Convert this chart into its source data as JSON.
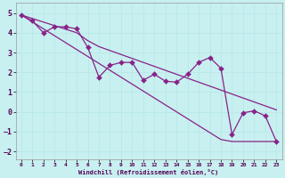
{
  "background_color": "#c8f0f0",
  "grid_color": "#b8e8e8",
  "line_color": "#882288",
  "xlabel": "Windchill (Refroidissement éolien,°C)",
  "xlim": [
    -0.5,
    23.5
  ],
  "ylim": [
    -2.4,
    5.5
  ],
  "xticks": [
    0,
    1,
    2,
    3,
    4,
    5,
    6,
    7,
    8,
    9,
    10,
    11,
    12,
    13,
    14,
    15,
    16,
    17,
    18,
    19,
    20,
    21,
    22,
    23
  ],
  "yticks": [
    -2,
    -1,
    0,
    1,
    2,
    3,
    4,
    5
  ],
  "x_data": [
    0,
    1,
    2,
    3,
    4,
    5,
    6,
    7,
    8,
    9,
    10,
    11,
    12,
    13,
    14,
    15,
    16,
    17,
    18,
    19,
    20,
    21,
    22,
    23
  ],
  "y_zigzag": [
    4.9,
    4.6,
    4.0,
    4.3,
    4.3,
    4.2,
    3.25,
    1.75,
    2.35,
    2.5,
    2.5,
    1.6,
    1.9,
    1.55,
    1.5,
    1.9,
    2.5,
    2.75,
    2.2,
    -1.15,
    -0.05,
    0.05,
    -0.2,
    -1.5
  ],
  "y_trend_steep": [
    4.9,
    4.55,
    4.2,
    3.85,
    3.5,
    3.15,
    2.8,
    2.45,
    2.1,
    1.75,
    1.4,
    1.05,
    0.7,
    0.35,
    0.0,
    -0.35,
    -0.7,
    -1.05,
    -1.4,
    -1.5,
    -1.5,
    -1.5,
    -1.5,
    -1.5
  ],
  "y_trend_shallow": [
    4.9,
    4.72,
    4.54,
    4.36,
    4.18,
    4.0,
    3.6,
    3.3,
    3.1,
    2.9,
    2.7,
    2.5,
    2.3,
    2.1,
    1.9,
    1.7,
    1.5,
    1.3,
    1.1,
    0.9,
    0.7,
    0.5,
    0.3,
    0.1
  ],
  "marker_size": 3,
  "line_width": 0.9
}
